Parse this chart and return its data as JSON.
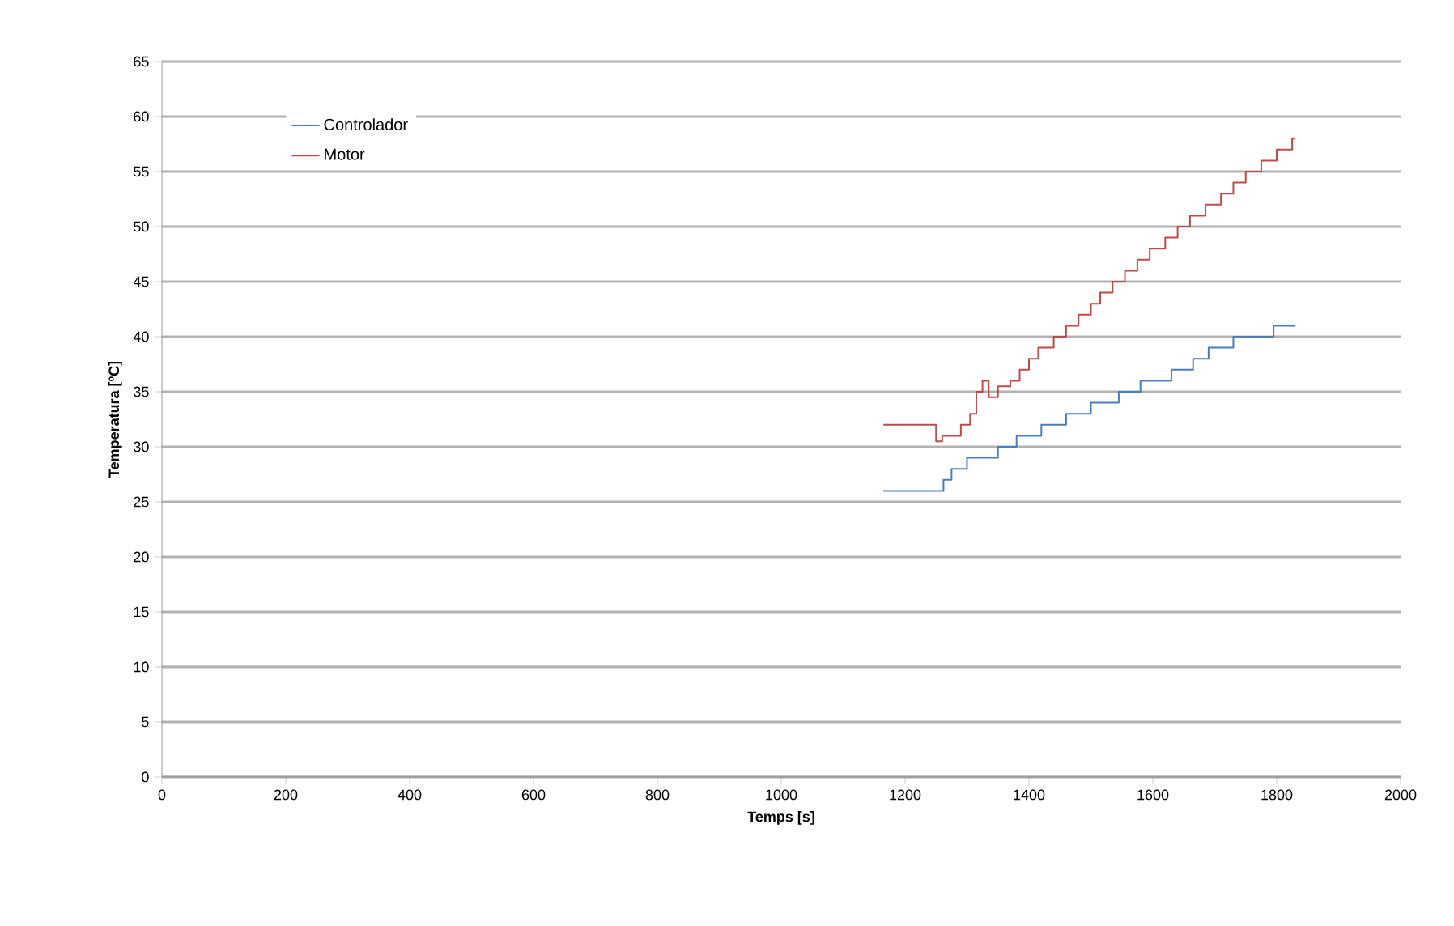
{
  "chart_data": {
    "type": "step",
    "xlabel": "Temps [s]",
    "ylabel": "Temperatura [ºC]",
    "xlim": [
      0,
      2000
    ],
    "ylim": [
      0,
      65
    ],
    "xticks": [
      0,
      200,
      400,
      600,
      800,
      1000,
      1200,
      1400,
      1600,
      1800,
      2000
    ],
    "yticks": [
      0,
      5,
      10,
      15,
      20,
      25,
      30,
      35,
      40,
      45,
      50,
      55,
      60,
      65
    ],
    "grid": "y",
    "legend": "top left",
    "series": [
      {
        "name": "Controlador",
        "color": "#4a7ebb",
        "x": [
          1165,
          1255,
          1262,
          1275,
          1300,
          1350,
          1380,
          1420,
          1460,
          1500,
          1545,
          1580,
          1630,
          1665,
          1690,
          1730,
          1795,
          1830
        ],
        "values": [
          26,
          26,
          27,
          28,
          29,
          30,
          31,
          32,
          33,
          34,
          35,
          36,
          37,
          38,
          39,
          40,
          41,
          41
        ]
      },
      {
        "name": "Motor",
        "color": "#be4b48",
        "x": [
          1165,
          1250,
          1260,
          1290,
          1305,
          1315,
          1325,
          1335,
          1350,
          1370,
          1385,
          1400,
          1415,
          1440,
          1460,
          1480,
          1500,
          1515,
          1535,
          1555,
          1575,
          1595,
          1620,
          1640,
          1660,
          1685,
          1710,
          1730,
          1750,
          1775,
          1800,
          1825,
          1830
        ],
        "values": [
          32,
          30.5,
          31,
          32,
          33,
          35,
          36,
          34.5,
          35.5,
          36,
          37,
          38,
          39,
          40,
          41,
          42,
          43,
          44,
          45,
          46,
          47,
          48,
          49,
          50,
          51,
          52,
          53,
          54,
          55,
          56,
          57,
          58,
          58
        ]
      }
    ]
  }
}
